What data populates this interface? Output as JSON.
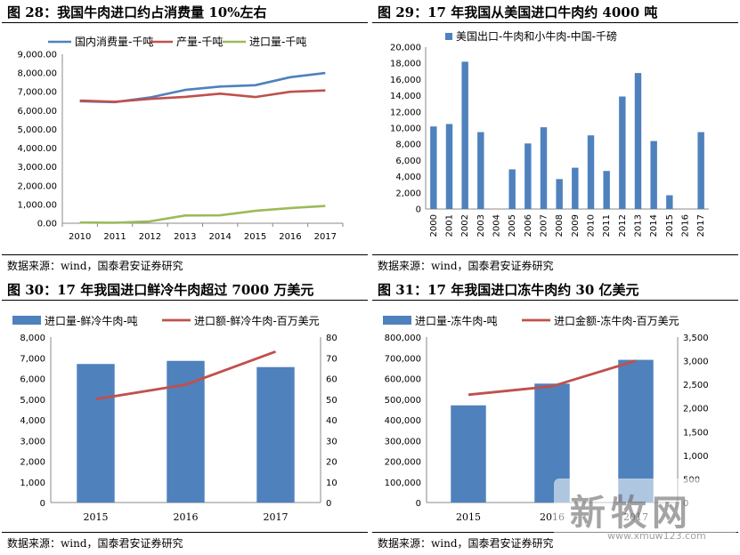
{
  "figures": [
    {
      "title": "图 28：我国牛肉进口约占消费量 10%左右",
      "source": "数据来源：wind，国泰君安证券研究"
    },
    {
      "title": "图 29：17 年我国从美国进口牛肉约 4000 吨",
      "source": "数据来源：wind，国泰君安证券研究"
    },
    {
      "title": "图 30：17 年我国进口鲜冷牛肉超过 7000 万美元",
      "source": "数据来源：wind，国泰君安证券研究"
    },
    {
      "title": "图 31：17 年我国进口冻牛肉约 30 亿美元",
      "source": "数据来源：wind，国泰君安证券研究"
    }
  ],
  "watermark": {
    "text": "新牧网",
    "url": "www.xmuw123.com"
  },
  "chart_data": [
    {
      "type": "line",
      "x": [
        "2010",
        "2011",
        "2012",
        "2013",
        "2014",
        "2015",
        "2016",
        "2017"
      ],
      "ylim": [
        0,
        9000
      ],
      "yticks": [
        "0.00",
        "1,000.00",
        "2,000.00",
        "3,000.00",
        "4,000.00",
        "5,000.00",
        "6,000.00",
        "7,000.00",
        "8,000.00",
        "9,000.00"
      ],
      "legend": "top",
      "series": [
        {
          "name": "国内消费量-千吨",
          "color": "#4f81bd",
          "values": [
            6500,
            6450,
            6700,
            7100,
            7280,
            7350,
            7780,
            8000
          ]
        },
        {
          "name": "产量-千吨",
          "color": "#c0504d",
          "values": [
            6530,
            6470,
            6620,
            6730,
            6900,
            6720,
            7000,
            7070
          ]
        },
        {
          "name": "进口量-千吨",
          "color": "#9bbb59",
          "values": [
            40,
            30,
            100,
            410,
            420,
            660,
            810,
            920
          ]
        }
      ]
    },
    {
      "type": "bar",
      "categories": [
        "2000",
        "2001",
        "2002",
        "2003",
        "2004",
        "2005",
        "2006",
        "2007",
        "2008",
        "2009",
        "2010",
        "2011",
        "2012",
        "2013",
        "2014",
        "2015",
        "2016",
        "2017"
      ],
      "ylim": [
        0,
        20000
      ],
      "yticks": [
        "0",
        "2,000",
        "4,000",
        "6,000",
        "8,000",
        "10,000",
        "12,000",
        "14,000",
        "16,000",
        "18,000",
        "20,000"
      ],
      "legend": "top",
      "series": [
        {
          "name": "美国出口-牛肉和小牛肉-中国-千磅",
          "color": "#4f81bd",
          "values": [
            10200,
            10500,
            18200,
            9500,
            0,
            4900,
            8100,
            10100,
            3700,
            5100,
            9100,
            4700,
            13900,
            16800,
            8400,
            1700,
            0,
            9500
          ]
        }
      ]
    },
    {
      "type": "bar",
      "categories": [
        "2015",
        "2016",
        "2017"
      ],
      "ylim": [
        0,
        8000
      ],
      "y2lim": [
        0,
        80
      ],
      "yticks": [
        "0",
        "1,000",
        "2,000",
        "3,000",
        "4,000",
        "5,000",
        "6,000",
        "7,000",
        "8,000"
      ],
      "y2ticks": [
        "0",
        "10",
        "20",
        "30",
        "40",
        "50",
        "60",
        "70",
        "80"
      ],
      "legend": "top",
      "series": [
        {
          "name": "进口量-鲜冷牛肉-吨",
          "kind": "bar",
          "color": "#4f81bd",
          "values": [
            6700,
            6850,
            6550
          ]
        },
        {
          "name": "进口额-鲜冷牛肉-百万美元",
          "kind": "line",
          "axis": "right",
          "color": "#c0504d",
          "values": [
            50,
            57,
            73
          ]
        }
      ]
    },
    {
      "type": "bar",
      "categories": [
        "2015",
        "2016",
        "2017"
      ],
      "ylim": [
        0,
        800000
      ],
      "y2lim": [
        0,
        3500
      ],
      "yticks": [
        "0",
        "100,000",
        "200,000",
        "300,000",
        "400,000",
        "500,000",
        "600,000",
        "700,000",
        "800,000"
      ],
      "y2ticks": [
        "0",
        "500",
        "1,000",
        "1,500",
        "2,000",
        "2,500",
        "3,000",
        "3,500"
      ],
      "legend": "top",
      "series": [
        {
          "name": "进口量-冻牛肉-吨",
          "kind": "bar",
          "color": "#4f81bd",
          "values": [
            470000,
            575000,
            690000
          ]
        },
        {
          "name": "进口金额-冻牛肉-百万美元",
          "kind": "line",
          "axis": "right",
          "color": "#c0504d",
          "values": [
            2280,
            2460,
            3000
          ]
        }
      ]
    }
  ]
}
